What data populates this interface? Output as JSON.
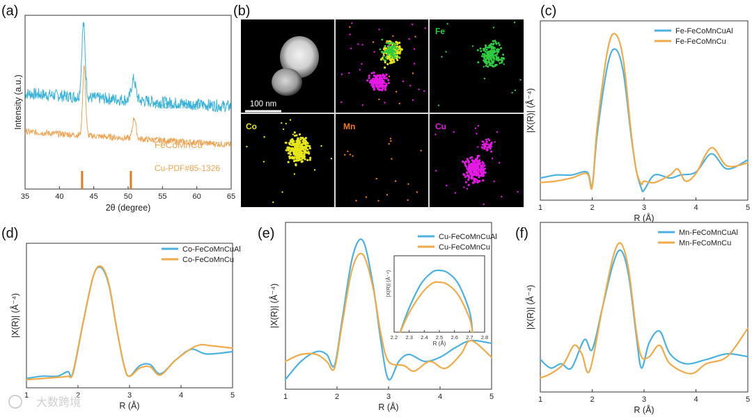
{
  "colors": {
    "blue": "#4bb1de",
    "orange": "#f0ab48",
    "xrd_blue": "#38b2d8",
    "xrd_orange": "#eea454",
    "ref_bar": "#e07a1e",
    "fe": "#2ecc40",
    "co": "#e6e619",
    "mn": "#f07c1a",
    "cu": "#e619e6"
  },
  "panels": {
    "a": "(a)",
    "b": "(b)",
    "c": "(c)",
    "d": "(d)",
    "e": "(e)",
    "f": "(f)"
  },
  "tem": {
    "scale_bar": "100 nm",
    "elements": [
      "Fe",
      "Co",
      "Mn",
      "Cu"
    ]
  },
  "watermark": "大数跨境",
  "chart_data": [
    {
      "id": "a",
      "type": "line",
      "xlabel": "2θ (degree)",
      "ylabel": "Intensity (a.u.)",
      "xlim": [
        35,
        65
      ],
      "xticks": [
        35,
        40,
        45,
        50,
        55,
        60,
        65
      ],
      "ylim": [
        0,
        1
      ],
      "series": [
        {
          "name": "FeCoMnCuAl",
          "color": "#38b2d8",
          "offset": 0.55,
          "peaks": [
            [
              43.5,
              0.42,
              0.35
            ],
            [
              50.8,
              0.12,
              0.45
            ]
          ]
        },
        {
          "name": "FeCoMnCu",
          "color": "#eea454",
          "offset": 0.33,
          "peaks": [
            [
              43.6,
              0.4,
              0.3
            ],
            [
              50.9,
              0.12,
              0.35
            ]
          ]
        }
      ],
      "reference": {
        "name": "Cu-PDF#85-1326",
        "positions": [
          43.3,
          50.4
        ]
      }
    },
    {
      "id": "c",
      "type": "line",
      "xlabel": "R (Å)",
      "ylabel": "|X(R)| (Å⁻⁴)",
      "xlim": [
        1,
        5
      ],
      "xticks": [
        1,
        2,
        3,
        4,
        5
      ],
      "ylim": [
        0,
        1
      ],
      "series": [
        {
          "name": "Fe-FeCoMnCuAl",
          "color": "#4bb1de",
          "x": [
            1.0,
            1.3,
            1.6,
            1.9,
            2.0,
            2.1,
            2.3,
            2.45,
            2.6,
            2.75,
            2.85,
            2.95,
            3.0,
            3.2,
            3.5,
            3.7,
            4.0,
            4.3,
            4.6,
            5.0
          ],
          "y": [
            0.1,
            0.12,
            0.12,
            0.14,
            0.05,
            0.4,
            0.85,
            0.95,
            0.8,
            0.38,
            0.15,
            0.03,
            0.02,
            0.12,
            0.1,
            0.12,
            0.14,
            0.26,
            0.16,
            0.22
          ]
        },
        {
          "name": "Fe-FeCoMnCu",
          "color": "#f0ab48",
          "x": [
            1.0,
            1.3,
            1.6,
            1.9,
            2.0,
            2.1,
            2.3,
            2.45,
            2.6,
            2.75,
            2.85,
            2.95,
            3.0,
            3.2,
            3.5,
            3.65,
            3.8,
            4.0,
            4.3,
            4.6,
            5.0
          ],
          "y": [
            0.07,
            0.08,
            0.1,
            0.13,
            0.04,
            0.45,
            0.95,
            1.05,
            0.88,
            0.4,
            0.15,
            0.06,
            0.08,
            0.07,
            0.12,
            0.16,
            0.08,
            0.13,
            0.3,
            0.18,
            0.2
          ]
        }
      ]
    },
    {
      "id": "d",
      "type": "line",
      "xlabel": "R (Å)",
      "ylabel": "|X(R)| (Å⁻⁴)",
      "xlim": [
        1,
        5
      ],
      "xticks": [
        1,
        2,
        3,
        4,
        5
      ],
      "ylim": [
        0,
        1
      ],
      "series": [
        {
          "name": "Co-FeCoMnCuAl",
          "color": "#4bb1de",
          "x": [
            1.0,
            1.3,
            1.6,
            1.8,
            1.9,
            2.1,
            2.3,
            2.45,
            2.6,
            2.75,
            2.9,
            3.0,
            3.2,
            3.4,
            3.6,
            3.9,
            4.2,
            4.5,
            5.0
          ],
          "y": [
            0.02,
            0.04,
            0.04,
            0.08,
            0.06,
            0.5,
            0.9,
            0.97,
            0.82,
            0.45,
            0.12,
            0.04,
            0.13,
            0.14,
            0.06,
            0.18,
            0.27,
            0.23,
            0.25
          ]
        },
        {
          "name": "Co-FeCoMnCu",
          "color": "#f0ab48",
          "x": [
            1.0,
            1.3,
            1.6,
            1.8,
            1.9,
            2.1,
            2.3,
            2.45,
            2.6,
            2.75,
            2.9,
            3.0,
            3.2,
            3.4,
            3.6,
            3.9,
            4.3,
            4.6,
            5.0
          ],
          "y": [
            0.01,
            0.02,
            0.03,
            0.04,
            0.07,
            0.5,
            0.9,
            0.98,
            0.83,
            0.45,
            0.12,
            0.04,
            0.11,
            0.12,
            0.05,
            0.18,
            0.3,
            0.3,
            0.28
          ]
        }
      ]
    },
    {
      "id": "e",
      "type": "line",
      "xlabel": "R (Å)",
      "ylabel": "|X(R)| (Å⁻⁴)",
      "xlim": [
        1,
        5
      ],
      "xticks": [
        1,
        2,
        3,
        4,
        5
      ],
      "ylim": [
        0,
        1
      ],
      "series": [
        {
          "name": "Cu-FeCoMnCuAl",
          "color": "#4bb1de",
          "x": [
            1.0,
            1.3,
            1.6,
            1.8,
            1.95,
            2.1,
            2.3,
            2.5,
            2.7,
            2.85,
            3.0,
            3.2,
            3.4,
            3.7,
            4.0,
            4.3,
            4.6,
            5.0
          ],
          "y": [
            0.02,
            0.15,
            0.22,
            0.2,
            0.12,
            0.45,
            0.9,
            1.02,
            0.7,
            0.3,
            0.02,
            0.15,
            0.2,
            0.15,
            0.18,
            0.25,
            0.3,
            0.28
          ]
        },
        {
          "name": "Cu-FeCoMnCu",
          "color": "#f0ab48",
          "x": [
            1.0,
            1.3,
            1.6,
            1.8,
            1.95,
            2.1,
            2.3,
            2.5,
            2.7,
            2.85,
            3.0,
            3.3,
            3.5,
            3.8,
            4.1,
            4.4,
            4.6,
            5.0
          ],
          "y": [
            0.15,
            0.2,
            0.2,
            0.15,
            0.1,
            0.42,
            0.82,
            0.92,
            0.68,
            0.35,
            0.15,
            0.12,
            0.08,
            0.15,
            0.1,
            0.2,
            0.3,
            0.18
          ]
        }
      ],
      "inset": {
        "xlabel": "R (Å)",
        "ylabel": "|X(R)| (Å⁻⁴)",
        "xlim": [
          2.2,
          2.8
        ],
        "xticks": [
          2.2,
          2.3,
          2.4,
          2.5,
          2.6,
          2.7,
          2.8
        ],
        "ylim": [
          0,
          1
        ],
        "series": [
          {
            "name": "Cu-FeCoMnCuAl",
            "color": "#4bb1de",
            "x": [
              2.24,
              2.3,
              2.38,
              2.45,
              2.5,
              2.56,
              2.63,
              2.7,
              2.72
            ],
            "y": [
              0.0,
              0.35,
              0.7,
              0.86,
              0.89,
              0.85,
              0.68,
              0.3,
              0.0
            ]
          },
          {
            "name": "Cu-FeCoMnCu",
            "color": "#f0ab48",
            "x": [
              2.24,
              2.3,
              2.38,
              2.45,
              2.5,
              2.56,
              2.63,
              2.7,
              2.72
            ],
            "y": [
              0.0,
              0.28,
              0.55,
              0.7,
              0.72,
              0.68,
              0.52,
              0.2,
              0.0
            ]
          }
        ]
      }
    },
    {
      "id": "f",
      "type": "line",
      "xlabel": "R (Å)",
      "ylabel": "|X(R)| (Å⁻⁴)",
      "xlim": [
        1,
        5
      ],
      "xticks": [
        1,
        2,
        3,
        4,
        5
      ],
      "ylim": [
        0,
        1
      ],
      "series": [
        {
          "name": "Mn-FeCoMnCuAl",
          "color": "#4bb1de",
          "x": [
            1.0,
            1.2,
            1.4,
            1.6,
            1.85,
            2.0,
            2.2,
            2.4,
            2.55,
            2.7,
            2.85,
            2.95,
            3.1,
            3.3,
            3.5,
            3.8,
            4.2,
            4.6,
            5.0
          ],
          "y": [
            0.18,
            0.12,
            0.15,
            0.12,
            0.32,
            0.25,
            0.55,
            0.85,
            0.95,
            0.78,
            0.35,
            0.12,
            0.3,
            0.38,
            0.22,
            0.15,
            0.18,
            0.22,
            0.2
          ]
        },
        {
          "name": "Mn-FeCoMnCu",
          "color": "#f0ab48",
          "x": [
            1.0,
            1.2,
            1.45,
            1.65,
            1.8,
            1.95,
            2.2,
            2.4,
            2.55,
            2.7,
            2.85,
            2.95,
            3.1,
            3.3,
            3.5,
            3.9,
            4.2,
            4.6,
            5.0
          ],
          "y": [
            0.05,
            0.08,
            0.15,
            0.28,
            0.22,
            0.1,
            0.55,
            0.9,
            1.0,
            0.82,
            0.38,
            0.2,
            0.2,
            0.28,
            0.15,
            0.08,
            0.15,
            0.2,
            0.4
          ]
        }
      ]
    }
  ]
}
